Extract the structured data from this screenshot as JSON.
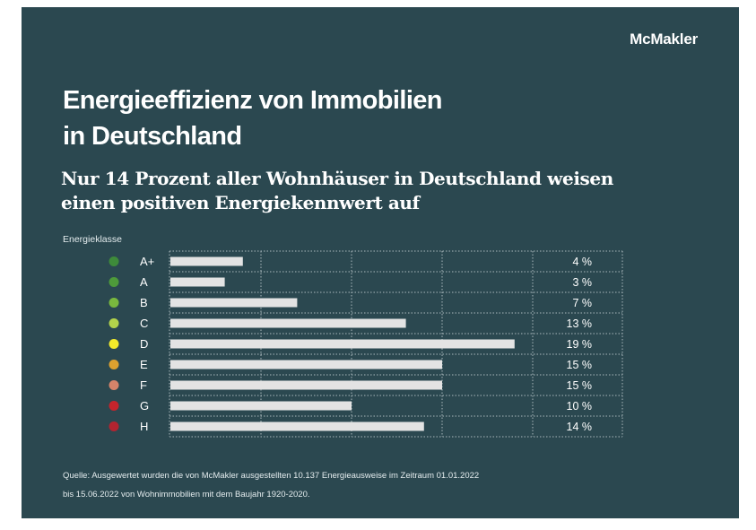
{
  "brand": "McMakler",
  "title_line1": "Energieeffizienz von Immobilien",
  "title_line2": "in Deutschland",
  "subtitle_line1": "Nur 14 Prozent aller Wohnhäuser in Deutschland weisen",
  "subtitle_line2": "einen positiven Energiekennwert auf",
  "source_line1": "Quelle: Ausgewertet wurden die von McMakler ausgestellten 10.137 Energieausweise im Zeitraum 01.01.2022",
  "source_line2": "bis 15.06.2022 von Wohnimmobilien mit dem Baujahr 1920-2020.",
  "colors": {
    "background": "#2b4850",
    "bar": "#e3e3e3",
    "grid": "#aab8bc"
  },
  "chart_data": {
    "type": "bar",
    "orientation": "horizontal",
    "ylabel": "Energieklasse",
    "xlim": [
      0,
      25
    ],
    "grid": true,
    "categories": [
      "A+",
      "A",
      "B",
      "C",
      "D",
      "E",
      "F",
      "G",
      "H"
    ],
    "values": [
      4,
      3,
      7,
      13,
      19,
      15,
      15,
      10,
      14
    ],
    "value_labels": [
      "4 %",
      "3 %",
      "7 %",
      "13 %",
      "19 %",
      "15 %",
      "15 %",
      "10 %",
      "14 %"
    ],
    "dot_colors": [
      "#3e8a3a",
      "#4e9a3a",
      "#79b83e",
      "#b3d34b",
      "#f2ea2a",
      "#dca12f",
      "#d6846a",
      "#c4242c",
      "#b22430"
    ]
  }
}
